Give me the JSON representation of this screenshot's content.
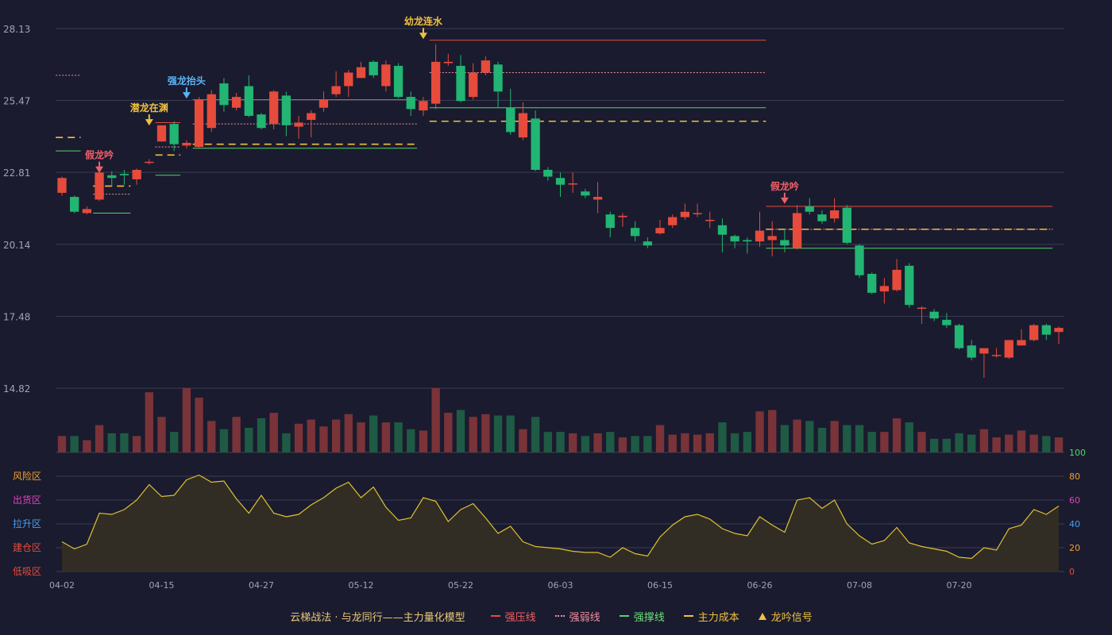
{
  "colors": {
    "background": "#1a1b2e",
    "up": "#e64b3c",
    "down": "#22b573",
    "vol_up": "#7a3338",
    "vol_down": "#1f5a44",
    "grid": "#3a3c52",
    "axis_text": "#9fa3b5",
    "strong_pressure": "#e64b3c",
    "strong_weak": "#f28fa0",
    "support": "#4fd66a",
    "cost": "#f0c040",
    "osc_line": "#e0c030",
    "osc_fill": "#332e25"
  },
  "chart_data": {
    "type": "candlestick",
    "price_axis": {
      "ticks": [
        "28.13",
        "25.47",
        "22.81",
        "20.14",
        "17.48",
        "14.82"
      ],
      "ylim": [
        14.82,
        28.13
      ]
    },
    "x_tick_labels": [
      {
        "label": "04-02",
        "index": 0
      },
      {
        "label": "04-15",
        "index": 8
      },
      {
        "label": "04-27",
        "index": 16
      },
      {
        "label": "05-12",
        "index": 24
      },
      {
        "label": "05-22",
        "index": 32
      },
      {
        "label": "06-03",
        "index": 40
      },
      {
        "label": "06-15",
        "index": 48
      },
      {
        "label": "06-26",
        "index": 56
      },
      {
        "label": "07-08",
        "index": 64
      },
      {
        "label": "07-20",
        "index": 72
      }
    ],
    "candles": [
      [
        22.05,
        22.6,
        22.65,
        21.95
      ],
      [
        21.9,
        21.35,
        21.95,
        21.3
      ],
      [
        21.3,
        21.45,
        21.55,
        21.25
      ],
      [
        21.8,
        22.8,
        22.85,
        21.75
      ],
      [
        22.7,
        22.6,
        22.85,
        22.3
      ],
      [
        22.75,
        22.7,
        22.9,
        22.35
      ],
      [
        22.55,
        22.9,
        22.95,
        22.35
      ],
      [
        23.2,
        23.2,
        23.3,
        23.1
      ],
      [
        23.95,
        24.55,
        24.55,
        23.95
      ],
      [
        24.6,
        23.85,
        24.7,
        23.6
      ],
      [
        23.8,
        23.9,
        24.0,
        23.7
      ],
      [
        23.75,
        25.5,
        25.6,
        23.7
      ],
      [
        24.45,
        25.7,
        25.85,
        24.3
      ],
      [
        26.1,
        25.3,
        26.3,
        25.05
      ],
      [
        25.2,
        25.6,
        25.75,
        25.1
      ],
      [
        26.0,
        24.9,
        26.4,
        24.85
      ],
      [
        24.95,
        24.45,
        25.0,
        24.4
      ],
      [
        24.6,
        25.8,
        25.85,
        24.4
      ],
      [
        25.65,
        24.55,
        25.8,
        24.15
      ],
      [
        24.5,
        24.65,
        24.9,
        24.05
      ],
      [
        24.75,
        25.0,
        25.1,
        24.1
      ],
      [
        25.2,
        25.5,
        25.8,
        25.05
      ],
      [
        25.7,
        26.0,
        26.55,
        25.6
      ],
      [
        26.0,
        26.5,
        26.6,
        25.6
      ],
      [
        26.3,
        26.7,
        26.9,
        26.3
      ],
      [
        26.9,
        26.4,
        26.95,
        26.3
      ],
      [
        26.0,
        26.8,
        26.95,
        25.8
      ],
      [
        26.75,
        25.6,
        26.85,
        25.55
      ],
      [
        25.6,
        25.15,
        25.8,
        24.9
      ],
      [
        25.1,
        25.45,
        25.6,
        24.9
      ],
      [
        25.35,
        26.9,
        27.55,
        25.15
      ],
      [
        26.85,
        26.9,
        27.2,
        26.75
      ],
      [
        26.75,
        25.45,
        27.15,
        25.4
      ],
      [
        25.6,
        26.5,
        26.85,
        25.5
      ],
      [
        26.5,
        26.95,
        27.1,
        26.4
      ],
      [
        26.8,
        25.8,
        26.9,
        25.2
      ],
      [
        25.2,
        24.3,
        25.9,
        24.2
      ],
      [
        24.1,
        25.0,
        25.4,
        24.0
      ],
      [
        24.8,
        22.9,
        25.1,
        22.85
      ],
      [
        22.9,
        22.65,
        23.0,
        22.5
      ],
      [
        22.6,
        22.35,
        22.8,
        21.9
      ],
      [
        22.4,
        22.4,
        22.8,
        22.05
      ],
      [
        22.1,
        21.95,
        22.2,
        21.85
      ],
      [
        21.8,
        21.9,
        22.45,
        21.3
      ],
      [
        21.25,
        20.75,
        21.35,
        20.4
      ],
      [
        21.15,
        21.2,
        21.3,
        20.8
      ],
      [
        20.75,
        20.45,
        21.0,
        20.25
      ],
      [
        20.25,
        20.1,
        20.4,
        20.0
      ],
      [
        20.55,
        20.75,
        21.05,
        20.5
      ],
      [
        20.85,
        21.15,
        21.25,
        20.75
      ],
      [
        21.15,
        21.35,
        21.65,
        21.05
      ],
      [
        21.3,
        21.3,
        21.65,
        21.15
      ],
      [
        21.05,
        21.05,
        21.35,
        20.75
      ],
      [
        20.85,
        20.5,
        21.1,
        19.85
      ],
      [
        20.45,
        20.25,
        20.5,
        20.0
      ],
      [
        20.3,
        20.25,
        20.4,
        19.8
      ],
      [
        20.25,
        20.65,
        21.35,
        20.05
      ],
      [
        20.3,
        20.45,
        21.0,
        19.7
      ],
      [
        20.3,
        20.1,
        20.7,
        19.85
      ],
      [
        20.0,
        21.3,
        21.6,
        19.95
      ],
      [
        21.55,
        21.35,
        21.85,
        21.25
      ],
      [
        21.25,
        21.0,
        21.4,
        20.9
      ],
      [
        21.1,
        21.4,
        21.85,
        20.95
      ],
      [
        21.5,
        20.2,
        21.6,
        20.15
      ],
      [
        20.1,
        19.0,
        20.15,
        18.9
      ],
      [
        19.05,
        18.35,
        19.1,
        18.3
      ],
      [
        18.4,
        18.6,
        18.9,
        17.95
      ],
      [
        18.45,
        19.2,
        19.6,
        18.4
      ],
      [
        19.35,
        17.9,
        19.45,
        17.8
      ],
      [
        17.8,
        17.8,
        17.85,
        17.2
      ],
      [
        17.65,
        17.4,
        17.75,
        17.3
      ],
      [
        17.35,
        17.15,
        17.6,
        17.05
      ],
      [
        17.15,
        16.3,
        17.2,
        16.25
      ],
      [
        16.4,
        15.95,
        16.6,
        15.85
      ],
      [
        16.1,
        16.3,
        16.3,
        15.2
      ],
      [
        16.05,
        16.05,
        16.3,
        15.95
      ],
      [
        15.95,
        16.6,
        16.6,
        15.9
      ],
      [
        16.4,
        16.6,
        17.0,
        16.4
      ],
      [
        16.6,
        17.15,
        17.2,
        16.55
      ],
      [
        17.15,
        16.8,
        17.2,
        16.6
      ],
      [
        16.9,
        17.05,
        17.1,
        16.45
      ]
    ],
    "volume": [
      12,
      12,
      9,
      20,
      14,
      14,
      12,
      44,
      26,
      15,
      47,
      40,
      23,
      17,
      26,
      18,
      25,
      29,
      14,
      21,
      24,
      19,
      24,
      28,
      22,
      27,
      22,
      22,
      17,
      16,
      47,
      29,
      31,
      26,
      28,
      27,
      27,
      17,
      26,
      15,
      15,
      14,
      12,
      14,
      15,
      11,
      12,
      12,
      20,
      13,
      14,
      13,
      14,
      22,
      14,
      15,
      30,
      31,
      20,
      24,
      23,
      18,
      23,
      20,
      20,
      15,
      15,
      25,
      22,
      15,
      10,
      10,
      14,
      13,
      17,
      11,
      13,
      16,
      13,
      12,
      11
    ],
    "oscillator": {
      "values": [
        25,
        19,
        23,
        49,
        48,
        52,
        60,
        73,
        63,
        64,
        77,
        81,
        75,
        76,
        61,
        49,
        64,
        49,
        46,
        48,
        56,
        62,
        70,
        75,
        62,
        71,
        54,
        43,
        45,
        62,
        59,
        42,
        52,
        57,
        45,
        32,
        38,
        25,
        21,
        20,
        19,
        17,
        16,
        16,
        12,
        20,
        15,
        13,
        29,
        39,
        46,
        48,
        44,
        36,
        32,
        30,
        46,
        39,
        33,
        60,
        62,
        53,
        60,
        40,
        30,
        23,
        26,
        37,
        24,
        21,
        19,
        17,
        12,
        11,
        20,
        18,
        36,
        39,
        52,
        48,
        55
      ],
      "zones": [
        "风险区",
        "出货区",
        "拉升区",
        "建仓区",
        "低吸区"
      ],
      "zone_colors": [
        "#f0a030",
        "#e040c0",
        "#4a9ef0",
        "#e64b3c",
        "#e64b3c"
      ],
      "right_ticks": [
        "100",
        "80",
        "60",
        "40",
        "20",
        "0"
      ],
      "right_tick_colors": [
        "#4fd66a",
        "#f0a030",
        "#e040c0",
        "#4a9ef0",
        "#f0a030",
        "#e64b3c"
      ],
      "ylim": [
        0,
        100
      ]
    },
    "levels": [
      {
        "type": "strong_pressure",
        "style": "solid",
        "price": 27.7,
        "from": 30,
        "to": 56
      },
      {
        "type": "strong_weak",
        "style": "dotted",
        "price": 26.5,
        "from": 30,
        "to": 56
      },
      {
        "type": "support",
        "style": "solid",
        "price": 25.2,
        "from": 30,
        "to": 56
      },
      {
        "type": "cost",
        "style": "dashed",
        "price": 24.7,
        "from": 30,
        "to": 56
      },
      {
        "type": "strong_pressure",
        "style": "solid",
        "price": 25.5,
        "from": 11,
        "to": 28
      },
      {
        "type": "strong_weak",
        "style": "dotted",
        "price": 24.6,
        "from": 11,
        "to": 28
      },
      {
        "type": "cost",
        "style": "dashed",
        "price": 23.85,
        "from": 11,
        "to": 28
      },
      {
        "type": "support",
        "style": "solid",
        "price": 23.7,
        "from": 11,
        "to": 28
      },
      {
        "type": "strong_pressure",
        "style": "solid",
        "price": 21.55,
        "from": 57,
        "to": 79
      },
      {
        "type": "strong_weak",
        "style": "dotted",
        "price": 20.7,
        "from": 57,
        "to": 79
      },
      {
        "type": "cost",
        "style": "dashed",
        "price": 20.7,
        "from": 57,
        "to": 79
      },
      {
        "type": "support",
        "style": "solid",
        "price": 20.0,
        "from": 57,
        "to": 79
      },
      {
        "type": "strong_weak",
        "style": "dotted",
        "price": 26.4,
        "from": 0,
        "to": 1
      },
      {
        "type": "cost",
        "style": "dashed",
        "price": 24.1,
        "from": 0,
        "to": 1
      },
      {
        "type": "support",
        "style": "solid",
        "price": 23.6,
        "from": 0,
        "to": 1
      },
      {
        "type": "strong_weak",
        "style": "dotted",
        "price": 22.0,
        "from": 3,
        "to": 5
      },
      {
        "type": "cost",
        "style": "dashed",
        "price": 22.3,
        "from": 3,
        "to": 5
      },
      {
        "type": "support",
        "style": "solid",
        "price": 21.3,
        "from": 3,
        "to": 5
      },
      {
        "type": "strong_pressure",
        "style": "solid",
        "price": 24.65,
        "from": 8,
        "to": 9
      },
      {
        "type": "strong_weak",
        "style": "dotted",
        "price": 23.75,
        "from": 8,
        "to": 9
      },
      {
        "type": "cost",
        "style": "dashed",
        "price": 23.45,
        "from": 8,
        "to": 9
      },
      {
        "type": "support",
        "style": "solid",
        "price": 22.7,
        "from": 8,
        "to": 9
      }
    ],
    "signals": [
      {
        "label": "假龙吟",
        "index": 3,
        "price": 22.85,
        "color": "#f0606a"
      },
      {
        "label": "潜龙在渊",
        "index": 7,
        "price": 24.6,
        "color": "#f0c040"
      },
      {
        "label": "强龙抬头",
        "index": 10,
        "price": 25.6,
        "color": "#5ab4f5"
      },
      {
        "label": "幼龙连水",
        "index": 29,
        "price": 27.8,
        "color": "#f0c040"
      },
      {
        "label": "假龙吟",
        "index": 58,
        "price": 21.7,
        "color": "#f0606a"
      }
    ],
    "legend": {
      "brand": "云梯战法 · 与龙同行——主力量化模型",
      "items": [
        {
          "label": "强压线",
          "color": "#e64b3c",
          "style": "solid"
        },
        {
          "label": "强弱线",
          "color": "#f28fa0",
          "style": "dotted"
        },
        {
          "label": "强撑线",
          "color": "#4fd66a",
          "style": "solid"
        },
        {
          "label": "主力成本",
          "color": "#f0c040",
          "style": "dashed"
        },
        {
          "label": "龙吟信号",
          "color": "#f0c040",
          "style": "triangle"
        }
      ]
    }
  }
}
